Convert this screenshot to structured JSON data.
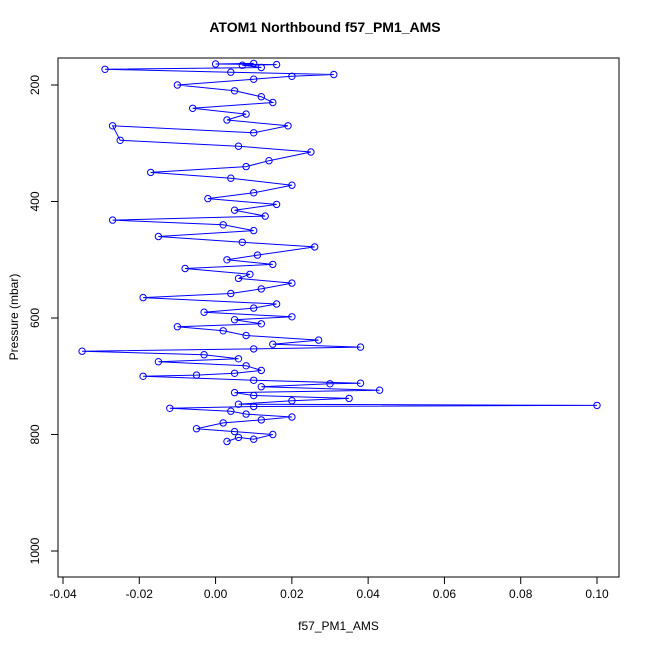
{
  "chart_data": {
    "type": "scatter",
    "title": "ATOM1 Northbound f57_PM1_AMS",
    "xlabel": "f57_PM1_AMS",
    "ylabel": "Pressure (mbar)",
    "xlim": [
      -0.04,
      0.1
    ],
    "ylim": [
      1000,
      160
    ],
    "y_reversed": true,
    "x_ticks": [
      -0.04,
      -0.02,
      0.0,
      0.02,
      0.04,
      0.06,
      0.08,
      0.1
    ],
    "x_tick_labels": [
      "-0.04",
      "-0.02",
      "0.00",
      "0.02",
      "0.04",
      "0.06",
      "0.08",
      "0.10"
    ],
    "y_ticks": [
      200,
      400,
      600,
      800,
      1000
    ],
    "y_tick_labels": [
      "200",
      "400",
      "600",
      "800",
      "1000"
    ],
    "grid": false,
    "marker": "open-circle",
    "connected_by_lines": true,
    "series_color": "#0000ff",
    "series": [
      {
        "points": [
          [
            0.003,
            812
          ],
          [
            0.006,
            805
          ],
          [
            0.01,
            808
          ],
          [
            0.015,
            800
          ],
          [
            0.005,
            795
          ],
          [
            -0.005,
            790
          ],
          [
            0.002,
            780
          ],
          [
            0.012,
            775
          ],
          [
            0.02,
            770
          ],
          [
            0.008,
            765
          ],
          [
            0.004,
            760
          ],
          [
            -0.012,
            755
          ],
          [
            0.01,
            752
          ],
          [
            0.1,
            750
          ],
          [
            0.006,
            748
          ],
          [
            0.02,
            742
          ],
          [
            0.035,
            738
          ],
          [
            0.01,
            733
          ],
          [
            0.005,
            728
          ],
          [
            0.043,
            724
          ],
          [
            0.012,
            718
          ],
          [
            0.03,
            713
          ],
          [
            0.038,
            712
          ],
          [
            0.01,
            707
          ],
          [
            -0.019,
            700
          ],
          [
            -0.005,
            698
          ],
          [
            0.005,
            695
          ],
          [
            0.012,
            690
          ],
          [
            0.008,
            682
          ],
          [
            -0.015,
            675
          ],
          [
            0.006,
            670
          ],
          [
            -0.003,
            663
          ],
          [
            -0.035,
            657
          ],
          [
            0.01,
            653
          ],
          [
            0.038,
            650
          ],
          [
            0.015,
            645
          ],
          [
            0.027,
            638
          ],
          [
            0.008,
            630
          ],
          [
            0.002,
            622
          ],
          [
            -0.01,
            615
          ],
          [
            0.012,
            610
          ],
          [
            0.005,
            603
          ],
          [
            0.02,
            598
          ],
          [
            -0.003,
            590
          ],
          [
            0.01,
            583
          ],
          [
            0.016,
            576
          ],
          [
            -0.019,
            565
          ],
          [
            0.004,
            558
          ],
          [
            0.012,
            550
          ],
          [
            0.02,
            540
          ],
          [
            0.006,
            532
          ],
          [
            0.009,
            525
          ],
          [
            -0.008,
            515
          ],
          [
            0.015,
            508
          ],
          [
            0.003,
            500
          ],
          [
            0.011,
            492
          ],
          [
            0.026,
            478
          ],
          [
            0.007,
            470
          ],
          [
            -0.015,
            460
          ],
          [
            0.01,
            450
          ],
          [
            0.002,
            440
          ],
          [
            -0.027,
            432
          ],
          [
            0.013,
            425
          ],
          [
            0.005,
            415
          ],
          [
            0.016,
            405
          ],
          [
            -0.002,
            395
          ],
          [
            0.01,
            385
          ],
          [
            0.02,
            372
          ],
          [
            0.004,
            360
          ],
          [
            -0.017,
            350
          ],
          [
            0.008,
            340
          ],
          [
            0.014,
            330
          ],
          [
            0.025,
            315
          ],
          [
            0.006,
            305
          ],
          [
            -0.025,
            295
          ],
          [
            -0.027,
            270
          ],
          [
            0.01,
            282
          ],
          [
            0.019,
            270
          ],
          [
            0.003,
            260
          ],
          [
            0.008,
            250
          ],
          [
            -0.006,
            240
          ],
          [
            0.015,
            230
          ],
          [
            0.012,
            220
          ],
          [
            0.005,
            210
          ],
          [
            -0.01,
            200
          ],
          [
            0.01,
            190
          ],
          [
            0.02,
            185
          ],
          [
            0.031,
            182
          ],
          [
            0.004,
            178
          ],
          [
            -0.029,
            173
          ],
          [
            0.012,
            170
          ],
          [
            0.007,
            166
          ],
          [
            0.016,
            165
          ],
          [
            0.0,
            164
          ],
          [
            0.01,
            163
          ]
        ]
      }
    ]
  }
}
